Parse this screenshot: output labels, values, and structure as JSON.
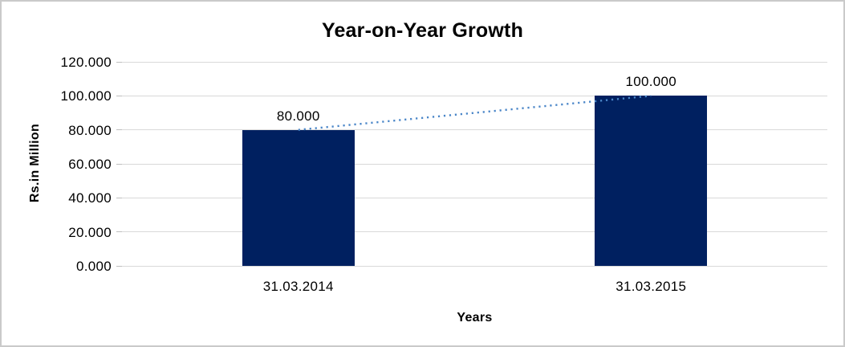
{
  "chart_data": {
    "type": "bar",
    "title": "Year-on-Year Growth",
    "categories": [
      "31.03.2014",
      "31.03.2015"
    ],
    "values": [
      80.0,
      100.0
    ],
    "data_labels": [
      "80.000",
      "100.000"
    ],
    "xlabel": "Years",
    "ylabel": "Rs.in Million",
    "ylim": [
      0,
      120
    ],
    "ytick_step": 20,
    "ytick_labels": [
      "0.000",
      "20.000",
      "40.000",
      "60.000",
      "80.000",
      "100.000",
      "120.000"
    ],
    "grid": true,
    "legend": "none",
    "trendline": {
      "style": "dotted",
      "from_value": 80.0,
      "to_value": 100.0
    },
    "colors": {
      "bar": "#002060",
      "trendline": "#4a86c8",
      "gridline": "#d9d9d9",
      "tick_mark": "#bfbfbf",
      "text": "#000000",
      "frame_border": "#cacaca",
      "background": "#ffffff"
    }
  }
}
